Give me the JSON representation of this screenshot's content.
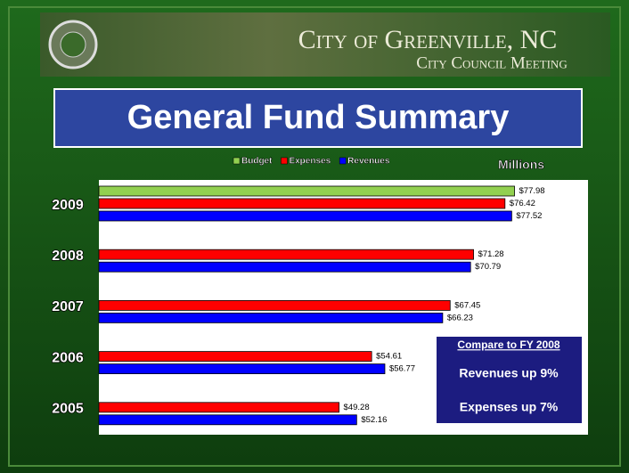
{
  "header": {
    "title": "City of Greenville, NC",
    "subtitle": "City Council Meeting"
  },
  "chart_data": {
    "type": "hbar",
    "title": "General Fund Summary",
    "unit_label": "Millions",
    "categories": [
      "2009",
      "2008",
      "2007",
      "2006",
      "2005"
    ],
    "series": [
      {
        "name": "Budget",
        "color": "#92d050",
        "values": [
          77.98,
          null,
          null,
          null,
          null
        ],
        "value_labels": [
          "$77.98",
          null,
          null,
          null,
          null
        ]
      },
      {
        "name": "Expenses",
        "color": "#ff0000",
        "values": [
          76.42,
          71.28,
          67.45,
          54.61,
          49.28
        ],
        "value_labels": [
          "$76.42",
          "$71.28",
          "$67.45",
          "$54.61",
          "$49.28"
        ]
      },
      {
        "name": "Revenues",
        "color": "#0000ff",
        "values": [
          77.52,
          70.79,
          66.23,
          56.77,
          52.16
        ],
        "value_labels": [
          "$77.52",
          "$70.79",
          "$66.23",
          "$56.77",
          "$52.16"
        ]
      }
    ],
    "xlim": [
      10,
      90
    ]
  },
  "callout": {
    "title": "Compare to FY 2008",
    "lines": [
      "Revenues up 9%",
      "Expenses up 7%"
    ]
  }
}
